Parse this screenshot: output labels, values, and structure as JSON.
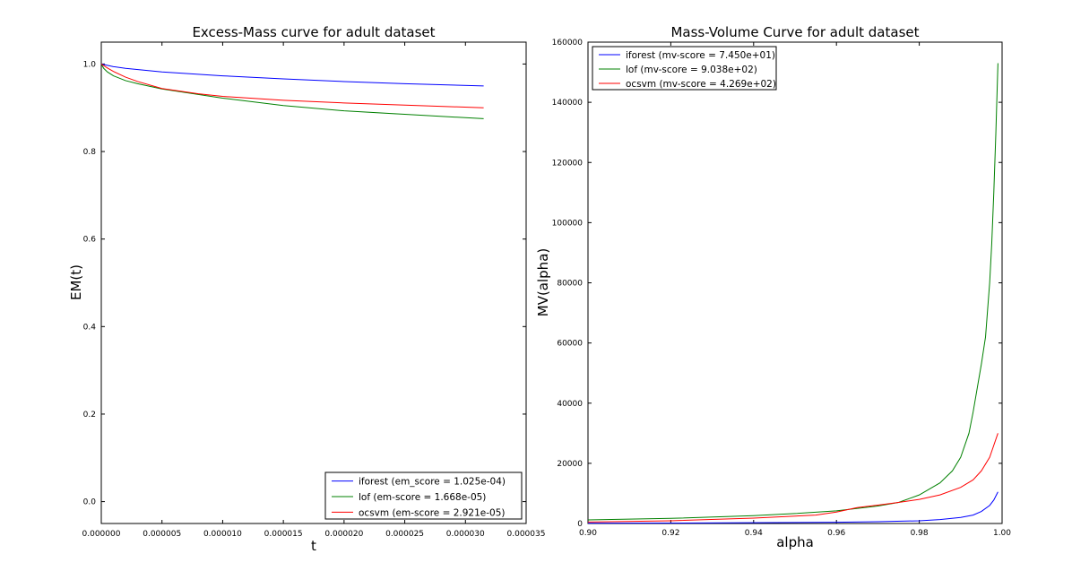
{
  "chart_data": [
    {
      "type": "line",
      "title": "Excess-Mass curve for adult dataset",
      "xlabel": "t",
      "ylabel": "EM(t)",
      "xlim": [
        0,
        3.5e-05
      ],
      "ylim": [
        -0.05,
        1.05
      ],
      "xticks": [
        0,
        5e-06,
        1e-05,
        1.5e-05,
        2e-05,
        2.5e-05,
        3e-05,
        3.5e-05
      ],
      "xtick_labels": [
        "0.000000",
        "0.000005",
        "0.000010",
        "0.000015",
        "0.000020",
        "0.000025",
        "0.000030",
        "0.000035"
      ],
      "yticks": [
        0.0,
        0.2,
        0.4,
        0.6,
        0.8,
        1.0
      ],
      "ytick_labels": [
        "0.0",
        "0.2",
        "0.4",
        "0.6",
        "0.8",
        "1.0"
      ],
      "grid": false,
      "legend": "lower-right",
      "series": [
        {
          "name": "iforest (em_score = 1.025e-04)",
          "color": "#0000ff",
          "x": [
            0,
            1e-06,
            2e-06,
            5e-06,
            1e-05,
            1.5e-05,
            2e-05,
            2.5e-05,
            3.15e-05
          ],
          "y": [
            1.0,
            0.994,
            0.99,
            0.982,
            0.973,
            0.966,
            0.96,
            0.955,
            0.95
          ]
        },
        {
          "name": "lof (em-score = 1.668e-05)",
          "color": "#008000",
          "x": [
            0,
            2e-07,
            5e-07,
            1e-06,
            2e-06,
            3e-06,
            5e-06,
            1e-05,
            1.5e-05,
            2e-05,
            2.5e-05,
            3.15e-05
          ],
          "y": [
            1.0,
            0.99,
            0.982,
            0.973,
            0.962,
            0.955,
            0.943,
            0.922,
            0.905,
            0.893,
            0.885,
            0.875
          ]
        },
        {
          "name": "ocsvm (em-score = 2.921e-05)",
          "color": "#ff0000",
          "x": [
            0,
            5e-07,
            1e-06,
            2e-06,
            3e-06,
            5e-06,
            8e-06,
            1e-05,
            1.5e-05,
            2e-05,
            2.5e-05,
            3.15e-05
          ],
          "y": [
            1.0,
            0.991,
            0.983,
            0.97,
            0.96,
            0.944,
            0.932,
            0.926,
            0.917,
            0.911,
            0.906,
            0.9
          ]
        }
      ]
    },
    {
      "type": "line",
      "title": "Mass-Volume Curve for adult dataset",
      "xlabel": "alpha",
      "ylabel": "MV(alpha)",
      "xlim": [
        0.9,
        1.0
      ],
      "ylim": [
        0,
        160000
      ],
      "xticks": [
        0.9,
        0.92,
        0.94,
        0.96,
        0.98,
        1.0
      ],
      "xtick_labels": [
        "0.90",
        "0.92",
        "0.94",
        "0.96",
        "0.98",
        "1.00"
      ],
      "yticks": [
        0,
        20000,
        40000,
        60000,
        80000,
        100000,
        120000,
        140000,
        160000
      ],
      "ytick_labels": [
        "0",
        "20000",
        "40000",
        "60000",
        "80000",
        "100000",
        "120000",
        "140000",
        "160000"
      ],
      "grid": false,
      "legend": "upper-left",
      "series": [
        {
          "name": "iforest (mv-score = 7.450e+01)",
          "color": "#0000ff",
          "x": [
            0.9,
            0.92,
            0.94,
            0.96,
            0.97,
            0.98,
            0.985,
            0.99,
            0.993,
            0.995,
            0.997,
            0.998,
            0.999
          ],
          "y": [
            100,
            150,
            250,
            400,
            600,
            900,
            1300,
            2000,
            2800,
            4000,
            6000,
            7800,
            10500
          ]
        },
        {
          "name": "lof (mv-score = 9.038e+02)",
          "color": "#008000",
          "x": [
            0.9,
            0.92,
            0.94,
            0.95,
            0.96,
            0.97,
            0.975,
            0.98,
            0.985,
            0.988,
            0.99,
            0.992,
            0.993,
            0.994,
            0.995,
            0.996,
            0.997,
            0.9975,
            0.998,
            0.9985,
            0.999
          ],
          "y": [
            1200,
            1700,
            2600,
            3300,
            4200,
            5800,
            7000,
            9500,
            13500,
            17500,
            22000,
            30000,
            37000,
            45000,
            53000,
            62000,
            80000,
            93000,
            110000,
            130000,
            153000
          ]
        },
        {
          "name": "ocsvm (mv-score = 4.269e+02)",
          "color": "#ff0000",
          "x": [
            0.9,
            0.92,
            0.94,
            0.955,
            0.96,
            0.965,
            0.97,
            0.975,
            0.98,
            0.985,
            0.99,
            0.993,
            0.995,
            0.997,
            0.998,
            0.999
          ],
          "y": [
            500,
            900,
            1800,
            2800,
            3800,
            5300,
            6100,
            7000,
            8000,
            9500,
            12000,
            14500,
            17500,
            22000,
            26000,
            30000
          ]
        }
      ]
    }
  ]
}
